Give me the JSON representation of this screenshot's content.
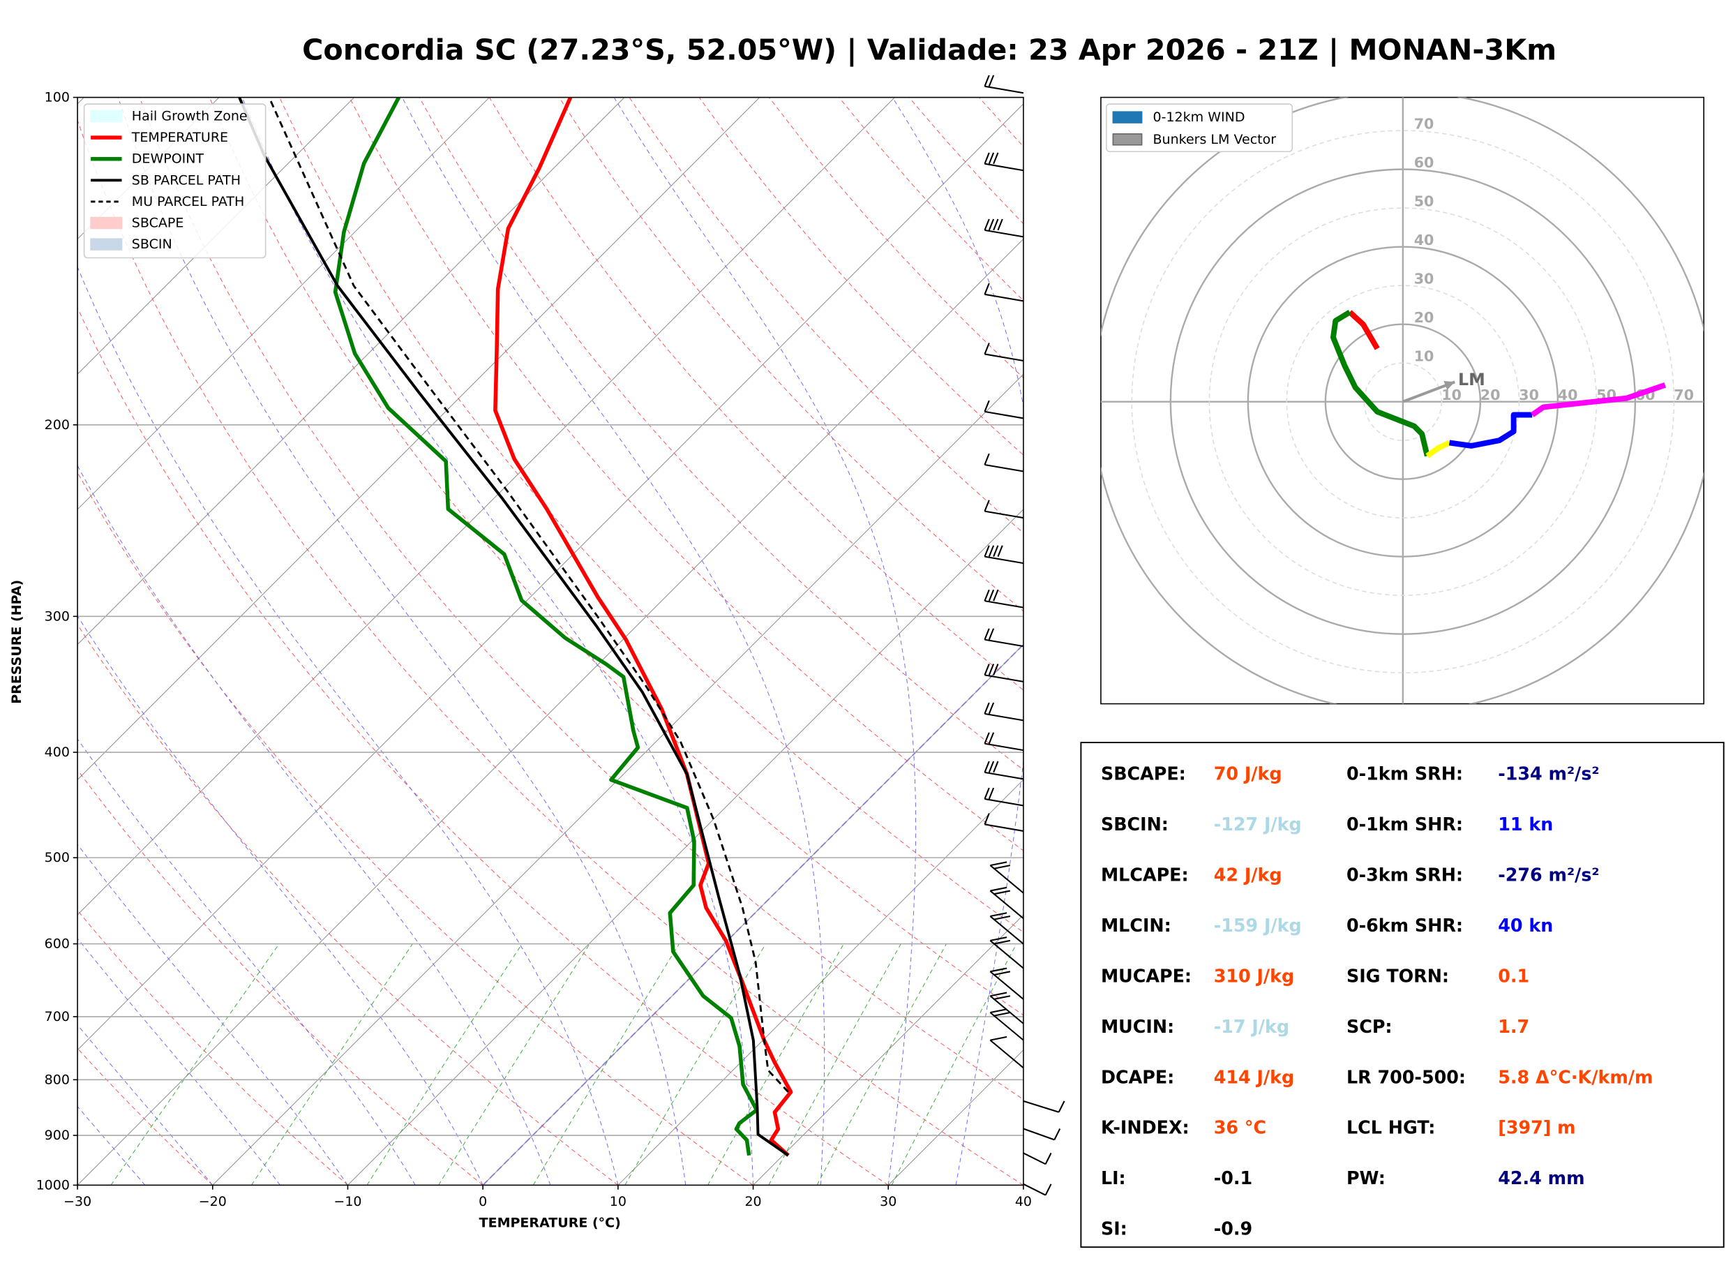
{
  "title": "Concordia SC (27.23°S, 52.05°W) | Validade: 23 Apr 2026 - 21Z | MONAN-3Km",
  "chart_data": [
    {
      "type": "skewt",
      "xlabel": "TEMPERATURE (°C)",
      "ylabel": "PRESSURE (HPA)",
      "xlim": [
        -30,
        40
      ],
      "xticks": [
        {
          "value": -30,
          "label": "−30"
        },
        {
          "value": -20,
          "label": "−20"
        },
        {
          "value": -10,
          "label": "−10"
        },
        0,
        10,
        20,
        30,
        40
      ],
      "ylim": [
        1000,
        100
      ],
      "log_y": true,
      "yticks": [
        100,
        200,
        300,
        400,
        500,
        600,
        700,
        800,
        900,
        1000
      ],
      "grid": true,
      "legend_position": "upper left",
      "series": [
        {
          "name": "TEMPERATURE",
          "color": "#ff0000",
          "linewidth": 3.5,
          "linestyle": "solid",
          "pressure": [
            939,
            909,
            888,
            857,
            821,
            771,
            736,
            651,
            596,
            556,
            530,
            506,
            419,
            365,
            315,
            288,
            239,
            215,
            194,
            172,
            150,
            132,
            116,
            100
          ],
          "temperature": [
            20.4,
            18.0,
            17.7,
            16.2,
            15.9,
            12.5,
            10.1,
            4.2,
            -0.1,
            -4.0,
            -6.1,
            -7.1,
            -15.3,
            -22.0,
            -29.8,
            -35.0,
            -45.3,
            -51.4,
            -56.4,
            -60.5,
            -65.2,
            -68.9,
            -71.1,
            -74.0
          ]
        },
        {
          "name": "DEWPOINT",
          "color": "#008000",
          "linewidth": 3.5,
          "linestyle": "solid",
          "pressure": [
            939,
            909,
            888,
            877,
            853,
            808,
            745,
            702,
            670,
            610,
            562,
            530,
            483,
            450,
            424,
            396,
            382,
            341,
            332,
            314,
            290,
            263,
            239,
            216,
            193,
            172,
            151,
            133,
            115,
            100
          ],
          "temperature": [
            17.5,
            16.2,
            14.6,
            14.4,
            14.7,
            11.8,
            8.7,
            6.0,
            2.3,
            -3.2,
            -6.3,
            -6.6,
            -9.8,
            -12.8,
            -20.5,
            -20.9,
            -22.5,
            -27.2,
            -29.4,
            -34.4,
            -40.4,
            -45.1,
            -52.6,
            -56.3,
            -64.5,
            -71.0,
            -77.0,
            -80.8,
            -84.4,
            -86.7
          ]
        },
        {
          "name": "SB PARCEL PATH",
          "color": "#000000",
          "linewidth": 2.5,
          "linestyle": "solid",
          "pressure": [
            939,
            898,
            847,
            736,
            640,
            543,
            419,
            352,
            306,
            234,
            187,
            149,
            113,
            100
          ],
          "temperature": [
            20.4,
            16.6,
            14.5,
            9.3,
            3.4,
            -3.9,
            -15.3,
            -24.7,
            -33.0,
            -49.3,
            -63.3,
            -77.3,
            -92.4,
            -98.5
          ]
        },
        {
          "name": "MU PARCEL PATH",
          "color": "#000000",
          "linewidth": 1.8,
          "linestyle": "dashed",
          "pressure": [
            821,
            784,
            736,
            624,
            556,
            461,
            391,
            348,
            299,
            228,
            185,
            149,
            100
          ],
          "temperature": [
            15.7,
            12.6,
            10.1,
            3.7,
            -1.3,
            -10.0,
            -18.2,
            -24.8,
            -33.8,
            -50.1,
            -62.9,
            -76.1,
            -96.3
          ]
        }
      ],
      "shaded": [
        {
          "name": "Hail Growth Zone",
          "color": "#e0ffff"
        },
        {
          "name": "SBCAPE",
          "color": "#ffcccc"
        },
        {
          "name": "SBCIN",
          "color": "#c8d8e8"
        }
      ]
    },
    {
      "type": "hodograph",
      "rings": [
        10,
        20,
        30,
        40,
        50,
        60,
        70
      ],
      "legend": [
        {
          "name": "0-12km WIND",
          "color": "#1f77b4"
        },
        {
          "name": "Bunkers LM Vector",
          "color": "#999999"
        }
      ],
      "lm": {
        "label": "LM",
        "u": 13.4,
        "v": 5.1
      },
      "series": [
        {
          "color": "#ff0000",
          "u": [
            -6.6,
            -10.3,
            -13.7
          ],
          "v": [
            13.7,
            20.0,
            23.1
          ]
        },
        {
          "color": "#008000",
          "u": [
            -13.7,
            -17.4,
            -18.0,
            -15.1,
            -12.3,
            -6.6,
            2.9,
            4.9,
            6.3
          ],
          "v": [
            23.1,
            20.9,
            16.6,
            9.4,
            3.7,
            -2.6,
            -6.3,
            -8.3,
            -14.0
          ]
        },
        {
          "color": "#ffff00",
          "u": [
            6.3,
            9.1,
            12.0
          ],
          "v": [
            -14.0,
            -12.0,
            -10.6
          ]
        },
        {
          "color": "#0000ff",
          "u": [
            12.0,
            17.7,
            24.9,
            28.6,
            28.6,
            33.4
          ],
          "v": [
            -10.6,
            -11.4,
            -10.0,
            -7.7,
            -3.4,
            -3.4
          ]
        },
        {
          "color": "#ff00ff",
          "u": [
            33.4,
            36.3,
            57.7,
            67.7
          ],
          "v": [
            -3.4,
            -1.4,
            0.9,
            4.3
          ]
        }
      ]
    }
  ],
  "parameters": {
    "left": [
      {
        "label": "SBCAPE:",
        "value": "70 J/kg",
        "color": "#ff4500"
      },
      {
        "label": "SBCIN:",
        "value": "-127 J/kg",
        "color": "#add8e6"
      },
      {
        "label": "MLCAPE:",
        "value": "42 J/kg",
        "color": "#ff4500"
      },
      {
        "label": "MLCIN:",
        "value": "-159 J/kg",
        "color": "#add8e6"
      },
      {
        "label": "MUCAPE:",
        "value": "310 J/kg",
        "color": "#ff4500"
      },
      {
        "label": "MUCIN:",
        "value": "-17 J/kg",
        "color": "#add8e6"
      },
      {
        "label": "DCAPE:",
        "value": "414 J/kg",
        "color": "#ff4500"
      },
      {
        "label": "K-INDEX:",
        "value": "36 °C",
        "color": "#ff4500"
      },
      {
        "label": "LI:",
        "value": "-0.1",
        "color": "#000000"
      },
      {
        "label": "SI:",
        "value": "-0.9",
        "color": "#000000"
      }
    ],
    "right": [
      {
        "label": "0-1km SRH:",
        "value": "-134 m²/s²",
        "color": "#000080"
      },
      {
        "label": "0-1km SHR:",
        "value": "11 kn",
        "color": "#0000ff"
      },
      {
        "label": "0-3km SRH:",
        "value": "-276 m²/s²",
        "color": "#000080"
      },
      {
        "label": "0-6km SHR:",
        "value": "40 kn",
        "color": "#0000ff"
      },
      {
        "label": "SIG TORN:",
        "value": "0.1",
        "color": "#ff4500"
      },
      {
        "label": "SCP:",
        "value": "1.7",
        "color": "#ff4500"
      },
      {
        "label": "LR 700-500:",
        "value": "5.8 Δ°C·K/km/m",
        "color": "#ff4500"
      },
      {
        "label": "LCL HGT:",
        "value": "[397] m",
        "color": "#ff4500"
      },
      {
        "label": "PW:",
        "value": "42.4 mm",
        "color": "#000080"
      }
    ]
  }
}
